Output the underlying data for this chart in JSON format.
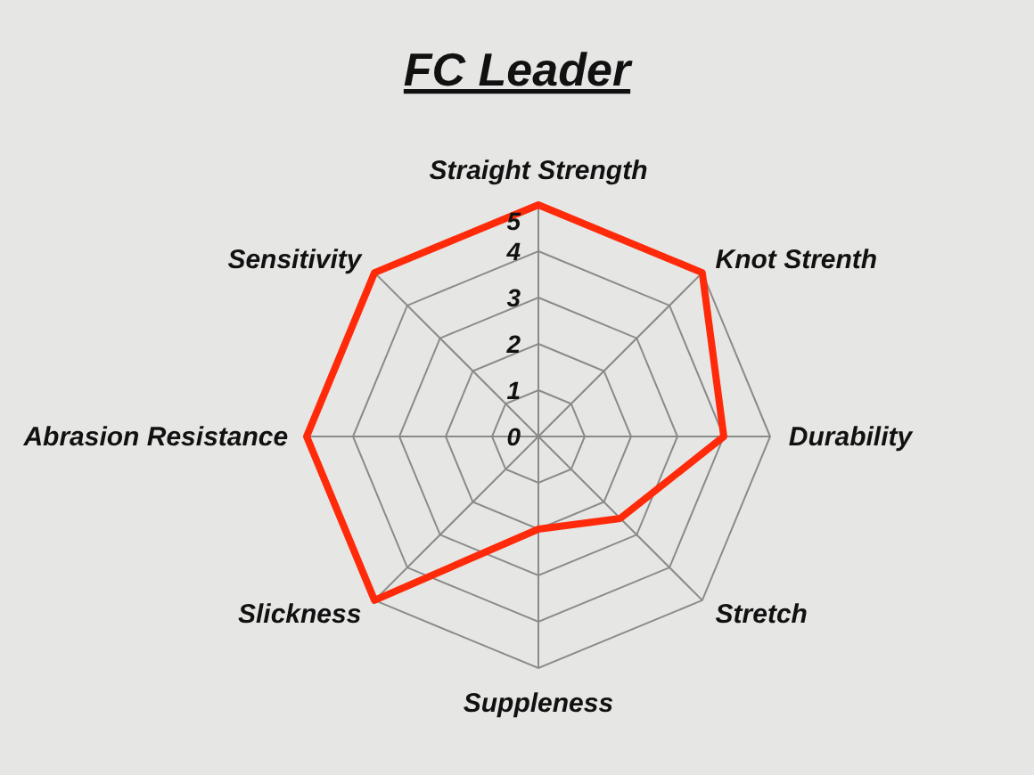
{
  "chart_data": {
    "type": "radar",
    "title": "FC Leader",
    "categories": [
      "Straight Strength",
      "Knot Strenth",
      "Durability",
      "Stretch",
      "Suppleness",
      "Slickness",
      "Abrasion Resistance",
      "Sensitivity"
    ],
    "series": [
      {
        "color": "#ff2a0a",
        "values": [
          5,
          5,
          4,
          2.5,
          2,
          5,
          5,
          5
        ]
      }
    ],
    "ylim": [
      0,
      5
    ],
    "yticks": [
      0,
      1,
      2,
      3,
      4,
      5
    ],
    "grid": true,
    "marker": "none"
  }
}
